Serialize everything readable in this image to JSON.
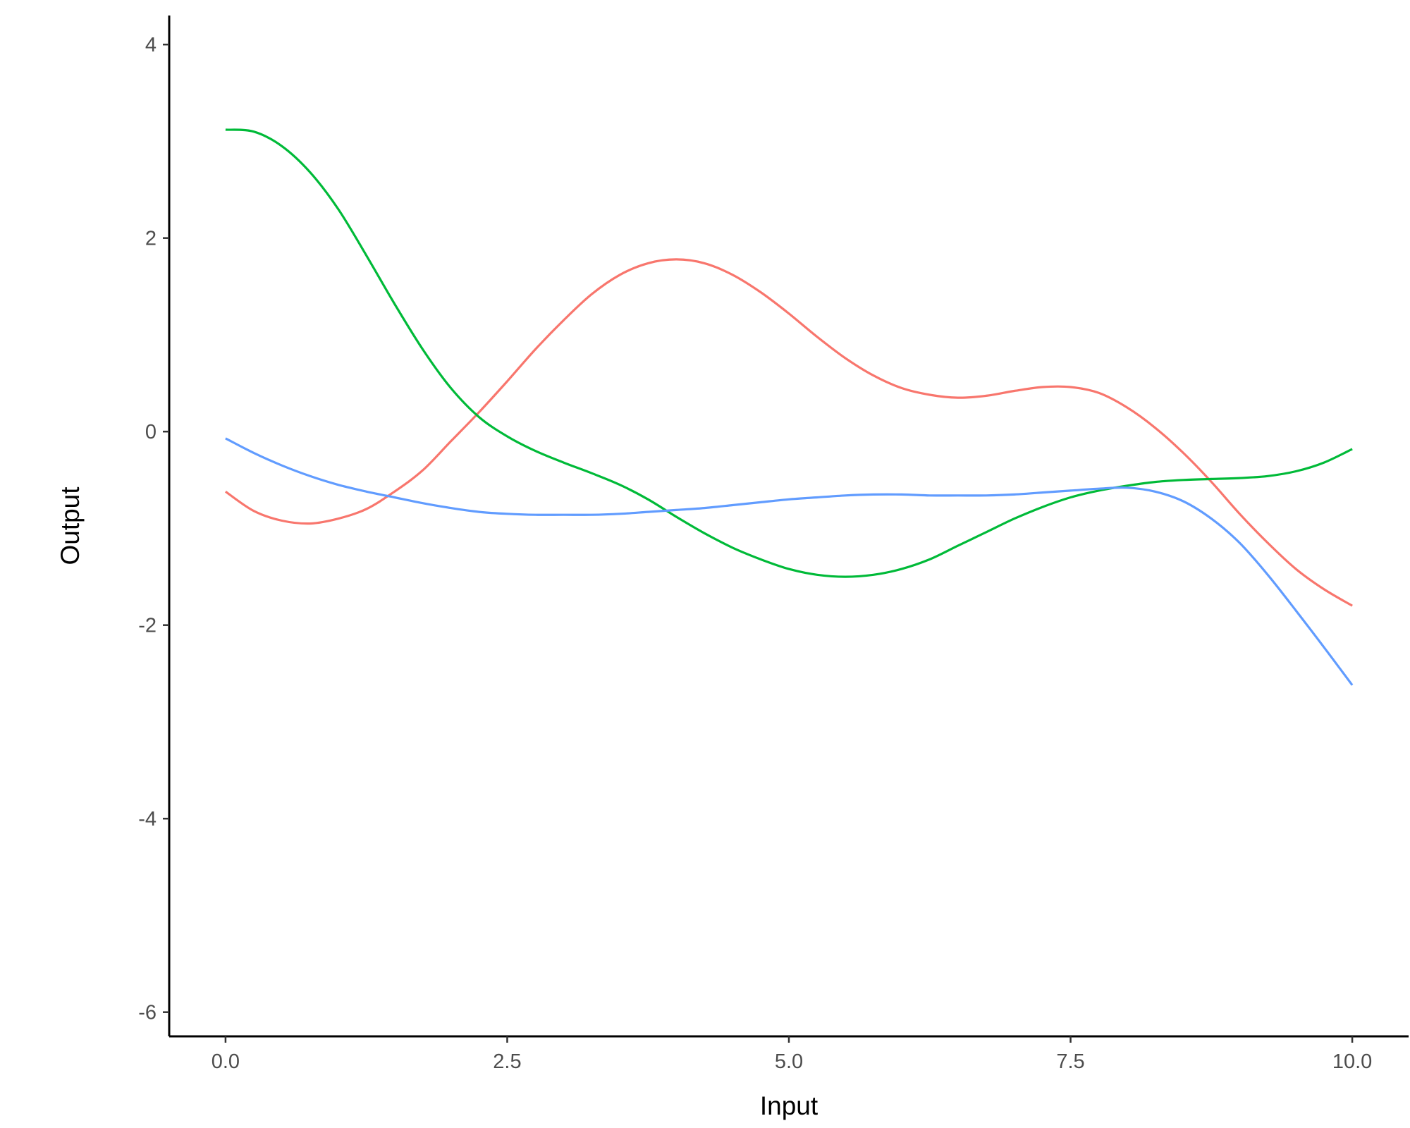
{
  "chart_data": {
    "type": "line",
    "title": "",
    "xlabel": "Input",
    "ylabel": "Output",
    "xlim": [
      -0.5,
      10.5
    ],
    "ylim": [
      -6.25,
      4.3
    ],
    "x_ticks": [
      0.0,
      2.5,
      5.0,
      7.5,
      10.0
    ],
    "x_tick_labels": [
      "0.0",
      "2.5",
      "5.0",
      "7.5",
      "10.0"
    ],
    "y_ticks": [
      -6,
      -4,
      -2,
      0,
      2,
      4
    ],
    "y_tick_labels": [
      "-6",
      "-4",
      "-2",
      "0",
      "2",
      "4"
    ],
    "grid": false,
    "legend": "none",
    "series": [
      {
        "color": "#F8766D",
        "x": [
          0.0,
          0.25,
          0.5,
          0.75,
          1.0,
          1.25,
          1.5,
          1.75,
          2.0,
          2.25,
          2.5,
          2.75,
          3.0,
          3.25,
          3.5,
          3.75,
          4.0,
          4.25,
          4.5,
          4.75,
          5.0,
          5.25,
          5.5,
          5.75,
          6.0,
          6.25,
          6.5,
          6.75,
          7.0,
          7.25,
          7.5,
          7.75,
          8.0,
          8.25,
          8.5,
          8.75,
          9.0,
          9.25,
          9.5,
          9.75,
          10.0
        ],
        "y": [
          -0.62,
          -0.82,
          -0.92,
          -0.95,
          -0.9,
          -0.8,
          -0.62,
          -0.4,
          -0.1,
          0.2,
          0.52,
          0.85,
          1.15,
          1.42,
          1.62,
          1.74,
          1.78,
          1.74,
          1.62,
          1.44,
          1.22,
          0.98,
          0.76,
          0.58,
          0.45,
          0.38,
          0.35,
          0.37,
          0.42,
          0.46,
          0.46,
          0.4,
          0.25,
          0.04,
          -0.22,
          -0.52,
          -0.85,
          -1.15,
          -1.42,
          -1.63,
          -1.8
        ]
      },
      {
        "color": "#00BA38",
        "x": [
          0.0,
          0.25,
          0.5,
          0.75,
          1.0,
          1.25,
          1.5,
          1.75,
          2.0,
          2.25,
          2.5,
          2.75,
          3.0,
          3.25,
          3.5,
          3.75,
          4.0,
          4.25,
          4.5,
          4.75,
          5.0,
          5.25,
          5.5,
          5.75,
          6.0,
          6.25,
          6.5,
          6.75,
          7.0,
          7.25,
          7.5,
          7.75,
          8.0,
          8.25,
          8.5,
          8.75,
          9.0,
          9.25,
          9.5,
          9.75,
          10.0
        ],
        "y": [
          3.12,
          3.1,
          2.95,
          2.68,
          2.3,
          1.82,
          1.32,
          0.85,
          0.45,
          0.15,
          -0.05,
          -0.2,
          -0.32,
          -0.43,
          -0.55,
          -0.7,
          -0.88,
          -1.05,
          -1.2,
          -1.32,
          -1.42,
          -1.48,
          -1.5,
          -1.48,
          -1.42,
          -1.32,
          -1.18,
          -1.04,
          -0.9,
          -0.78,
          -0.68,
          -0.61,
          -0.56,
          -0.52,
          -0.5,
          -0.49,
          -0.48,
          -0.46,
          -0.41,
          -0.32,
          -0.18
        ]
      },
      {
        "color": "#619CFF",
        "x": [
          0.0,
          0.25,
          0.5,
          0.75,
          1.0,
          1.25,
          1.5,
          1.75,
          2.0,
          2.25,
          2.5,
          2.75,
          3.0,
          3.25,
          3.5,
          3.75,
          4.0,
          4.25,
          4.5,
          4.75,
          5.0,
          5.25,
          5.5,
          5.75,
          6.0,
          6.25,
          6.5,
          6.75,
          7.0,
          7.25,
          7.5,
          7.75,
          8.0,
          8.25,
          8.5,
          8.75,
          9.0,
          9.25,
          9.5,
          9.75,
          10.0
        ],
        "y": [
          -0.07,
          -0.22,
          -0.35,
          -0.46,
          -0.55,
          -0.62,
          -0.68,
          -0.74,
          -0.79,
          -0.83,
          -0.85,
          -0.86,
          -0.86,
          -0.86,
          -0.85,
          -0.83,
          -0.81,
          -0.79,
          -0.76,
          -0.73,
          -0.7,
          -0.68,
          -0.66,
          -0.65,
          -0.65,
          -0.66,
          -0.66,
          -0.66,
          -0.65,
          -0.63,
          -0.61,
          -0.59,
          -0.58,
          -0.62,
          -0.72,
          -0.9,
          -1.15,
          -1.48,
          -1.85,
          -2.23,
          -2.62
        ]
      }
    ]
  }
}
